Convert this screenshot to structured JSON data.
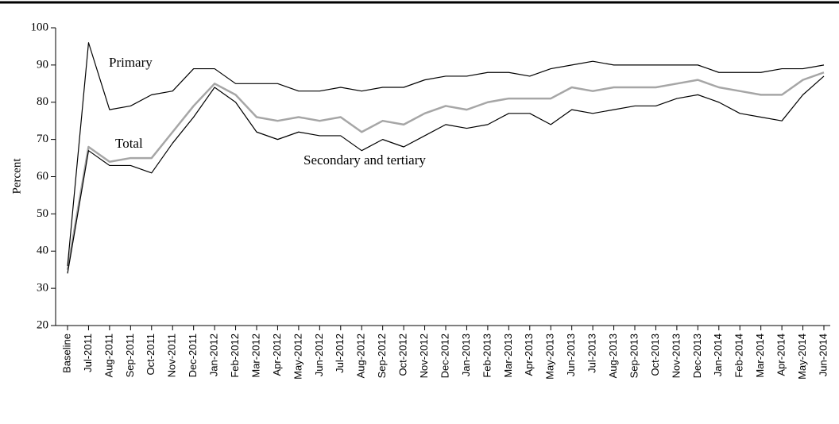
{
  "chart_data": {
    "type": "line",
    "y_label": "Percent",
    "categories": [
      "Baseline",
      "Jul-2011",
      "Aug-2011",
      "Sep-2011",
      "Oct-2011",
      "Nov-2011",
      "Dec-2011",
      "Jan-2012",
      "Feb-2012",
      "Mar-2012",
      "Apr-2012",
      "May-2012",
      "Jun-2012",
      "Jul-2012",
      "Aug-2012",
      "Sep-2012",
      "Oct-2012",
      "Nov-2012",
      "Dec-2012",
      "Jan-2013",
      "Feb-2013",
      "Mar-2013",
      "Apr-2013",
      "May-2013",
      "Jun-2013",
      "Jul-2013",
      "Aug-2013",
      "Sep-2013",
      "Oct-2013",
      "Nov-2013",
      "Dec-2013",
      "Jan-2014",
      "Feb-2014",
      "Mar-2014",
      "Apr-2014",
      "May-2014",
      "Jun-2014"
    ],
    "series": [
      {
        "name": "Primary",
        "color": "#000000",
        "values": [
          36,
          96,
          78,
          79,
          82,
          83,
          89,
          89,
          85,
          85,
          85,
          83,
          83,
          84,
          83,
          84,
          84,
          86,
          87,
          87,
          88,
          88,
          87,
          89,
          90,
          91,
          90,
          90,
          90,
          90,
          90,
          88,
          88,
          88,
          89,
          89,
          90
        ]
      },
      {
        "name": "Total",
        "color": "#a6a6a6",
        "values": [
          35,
          68,
          64,
          65,
          65,
          72,
          79,
          85,
          82,
          76,
          75,
          76,
          75,
          76,
          72,
          75,
          74,
          77,
          79,
          78,
          80,
          81,
          81,
          81,
          84,
          83,
          84,
          84,
          84,
          85,
          86,
          84,
          83,
          82,
          82,
          86,
          88
        ]
      },
      {
        "name": "Secondary and tertiary",
        "color": "#000000",
        "values": [
          34,
          67,
          63,
          63,
          61,
          69,
          76,
          84,
          80,
          72,
          70,
          72,
          71,
          71,
          67,
          70,
          68,
          71,
          74,
          73,
          74,
          77,
          77,
          74,
          78,
          77,
          78,
          79,
          79,
          81,
          82,
          80,
          77,
          76,
          75,
          82,
          87
        ]
      }
    ],
    "ylim": [
      20,
      100
    ],
    "yticks": [
      20,
      30,
      40,
      50,
      60,
      70,
      80,
      90,
      100
    ],
    "grid": false
  }
}
